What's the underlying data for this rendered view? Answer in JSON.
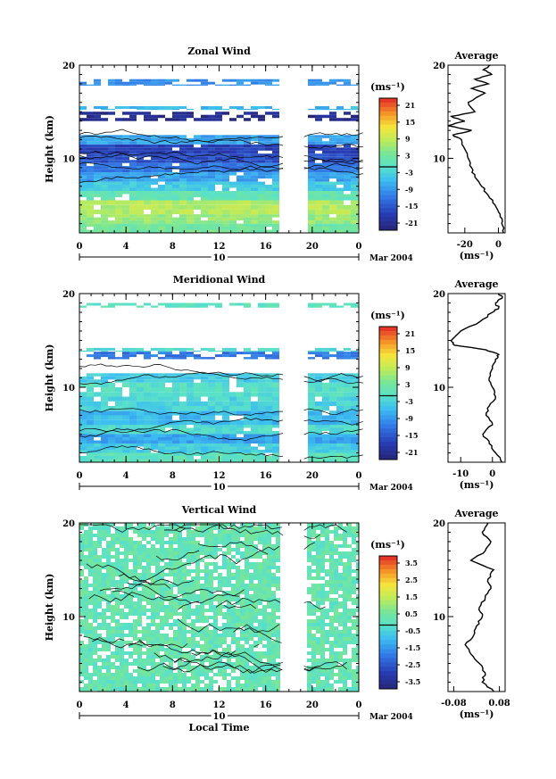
{
  "chart_data": [
    {
      "type": "heatmap",
      "title": "Zonal Wind",
      "ylabel": "Height (km)",
      "xlabel": "",
      "ylim": [
        2,
        20
      ],
      "xlim": [
        0,
        24
      ],
      "xticks": [
        "0",
        "4",
        "8",
        "12",
        "16",
        "20",
        "0"
      ],
      "yticks": [
        "10",
        "20"
      ],
      "date_marker": "10",
      "date_label": "Mar 2004",
      "colorbar": {
        "unit": "(ms⁻¹)",
        "levels": [
          "21",
          "15",
          "9",
          "3",
          "-3",
          "-9",
          "-15",
          "-21"
        ],
        "vmin": -24,
        "vmax": 24
      },
      "data_gap_hours": [
        17.5,
        19.3
      ],
      "layers": [
        {
          "z0": 2.0,
          "z1": 3.0,
          "value": 3
        },
        {
          "z0": 3.0,
          "z1": 4.0,
          "value": 6
        },
        {
          "z0": 4.0,
          "z1": 5.5,
          "value": 8
        },
        {
          "z0": 5.5,
          "z1": 6.5,
          "value": 1
        },
        {
          "z0": 6.5,
          "z1": 7.5,
          "value": -4
        },
        {
          "z0": 7.5,
          "z1": 8.5,
          "value": -8
        },
        {
          "z0": 8.5,
          "z1": 9.5,
          "value": -12
        },
        {
          "z0": 9.5,
          "z1": 10.5,
          "value": -16
        },
        {
          "z0": 10.5,
          "z1": 11.5,
          "value": -18
        },
        {
          "z0": 11.5,
          "z1": 12.5,
          "value": -8
        },
        {
          "z0": 14.0,
          "z1": 15.0,
          "value": -22
        },
        {
          "z0": 15.2,
          "z1": 15.6,
          "value": -6
        },
        {
          "z0": 17.8,
          "z1": 18.5,
          "value": -10
        }
      ],
      "profile": {
        "title": "Average",
        "xlabel": "(ms⁻¹)",
        "xticks": [
          "-20",
          "0"
        ],
        "xlim": [
          -30,
          4
        ],
        "heights": [
          2,
          3,
          4,
          5,
          6,
          7,
          8,
          9,
          10,
          11,
          12,
          12.5,
          13,
          13.5,
          14,
          14.5,
          15,
          16,
          17,
          17.5,
          18,
          18.5,
          19,
          19.5,
          20
        ],
        "values": [
          3,
          2,
          1,
          -2,
          -6,
          -10,
          -14,
          -16,
          -18,
          -20,
          -22,
          -27,
          -16,
          -30,
          -20,
          -28,
          -14,
          -18,
          -8,
          -16,
          -6,
          -14,
          -4,
          -9,
          -5
        ]
      }
    },
    {
      "type": "heatmap",
      "title": "Meridional Wind",
      "ylabel": "Height (km)",
      "xlabel": "",
      "ylim": [
        2,
        20
      ],
      "xlim": [
        0,
        24
      ],
      "xticks": [
        "0",
        "4",
        "8",
        "12",
        "16",
        "20",
        "0"
      ],
      "yticks": [
        "10",
        "20"
      ],
      "date_marker": "10",
      "date_label": "Mar 2004",
      "colorbar": {
        "unit": "(ms⁻¹)",
        "levels": [
          "21",
          "15",
          "9",
          "3",
          "-3",
          "-9",
          "-15",
          "-21"
        ],
        "vmin": -24,
        "vmax": 24
      },
      "data_gap_hours": [
        17.5,
        19.3
      ],
      "layers": [
        {
          "z0": 2.0,
          "z1": 3.0,
          "value": 0
        },
        {
          "z0": 3.0,
          "z1": 4.0,
          "value": -4
        },
        {
          "z0": 4.0,
          "z1": 5.0,
          "value": -8
        },
        {
          "z0": 5.0,
          "z1": 6.0,
          "value": -2
        },
        {
          "z0": 6.0,
          "z1": 7.5,
          "value": -6
        },
        {
          "z0": 7.5,
          "z1": 9.0,
          "value": -3
        },
        {
          "z0": 9.0,
          "z1": 10.5,
          "value": -1
        },
        {
          "z0": 10.5,
          "z1": 11.5,
          "value": -4
        },
        {
          "z0": 13.0,
          "z1": 13.8,
          "value": -12
        },
        {
          "z0": 13.8,
          "z1": 14.2,
          "value": -2
        },
        {
          "z0": 18.5,
          "z1": 19.0,
          "value": 0
        }
      ],
      "profile": {
        "title": "Average",
        "xlabel": "(ms⁻¹)",
        "xticks": [
          "-10",
          "0"
        ],
        "xlim": [
          -14,
          4
        ],
        "heights": [
          2,
          3,
          4,
          5,
          6,
          7,
          8,
          9,
          10,
          11,
          12,
          13,
          13.5,
          14,
          14.5,
          15,
          16,
          17,
          18,
          18.5,
          19,
          19.5,
          20
        ],
        "values": [
          3,
          1,
          -1,
          -3,
          0,
          -2,
          -1,
          1,
          0,
          -1,
          0,
          1,
          2,
          -2,
          -12,
          -13,
          -10,
          -4,
          0,
          2,
          1,
          3,
          2
        ]
      }
    },
    {
      "type": "heatmap",
      "title": "Vertical Wind",
      "ylabel": "Height (km)",
      "xlabel": "Local Time",
      "ylim": [
        2,
        20
      ],
      "xlim": [
        0,
        24
      ],
      "xticks": [
        "0",
        "4",
        "8",
        "12",
        "16",
        "20",
        "0"
      ],
      "yticks": [
        "10",
        "20"
      ],
      "date_marker": "10",
      "date_label": "Mar 2004",
      "colorbar": {
        "unit": "(ms⁻¹)",
        "levels": [
          "3.5",
          "2.5",
          "1.5",
          "0.5",
          "-0.5",
          "-1.5",
          "-2.5",
          "-3.5"
        ],
        "vmin": -4,
        "vmax": 4
      },
      "data_gap_hours": [
        17.5,
        19.3
      ],
      "layers": [
        {
          "z0": 2.0,
          "z1": 20.0,
          "value": 0.2
        }
      ],
      "profile": {
        "title": "Average",
        "xlabel": "(ms⁻¹)",
        "xticks": [
          "-0.08",
          "0.08"
        ],
        "xlim": [
          -0.1,
          0.1
        ],
        "heights": [
          2,
          3,
          4,
          5,
          6,
          7,
          8,
          9,
          10,
          11,
          12,
          13,
          14,
          15,
          16,
          17,
          18,
          19,
          20
        ],
        "values": [
          0.06,
          0.02,
          0.03,
          0.01,
          -0.02,
          -0.04,
          -0.01,
          0.0,
          0.02,
          0.01,
          0.03,
          0.05,
          0.04,
          0.06,
          -0.02,
          0.03,
          0.05,
          0.02,
          0.04
        ]
      }
    }
  ]
}
